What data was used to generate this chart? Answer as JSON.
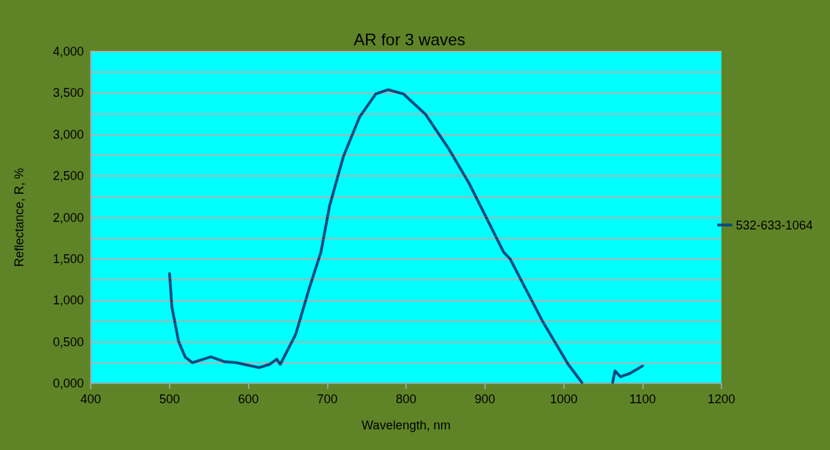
{
  "chart_data": {
    "type": "line",
    "title": "AR for 3 waves",
    "xlabel": "Wavelength, nm",
    "ylabel": "Reflectance, R, %",
    "x": [
      500,
      503,
      511.5,
      520,
      529,
      552.5,
      570,
      584,
      613.5,
      627,
      636,
      640.5,
      660,
      677,
      692,
      703,
      720.7,
      741,
      761.6,
      777,
      796.5,
      825,
      854,
      880,
      923.8,
      932,
      973,
      1005.6,
      1023,
      1040,
      1062,
      1065,
      1072,
      1084,
      1100
    ],
    "series": [
      {
        "name": "532-633-1064",
        "color": "#004a80",
        "values": [
          1.325,
          0.92,
          0.505,
          0.315,
          0.25,
          0.32,
          0.26,
          0.25,
          0.19,
          0.23,
          0.29,
          0.23,
          0.59,
          1.14,
          1.58,
          2.14,
          2.74,
          3.21,
          3.49,
          3.54,
          3.49,
          3.24,
          2.83,
          2.41,
          1.58,
          1.5,
          0.75,
          0.23,
          0.01,
          null,
          0.01,
          0.15,
          0.08,
          0.12,
          0.21
        ]
      }
    ],
    "xlim": [
      400,
      1200
    ],
    "xticks": [
      400,
      500,
      600,
      700,
      800,
      900,
      1000,
      1100,
      1200
    ],
    "ylim": [
      0,
      4
    ],
    "yticks": [
      {
        "value": 0,
        "label": "0,000"
      },
      {
        "value": 0.25,
        "label": null
      },
      {
        "value": 0.5,
        "label": "0,500"
      },
      {
        "value": 0.75,
        "label": null
      },
      {
        "value": 1,
        "label": "1,000"
      },
      {
        "value": 1.25,
        "label": null
      },
      {
        "value": 1.5,
        "label": "1,500"
      },
      {
        "value": 1.75,
        "label": null
      },
      {
        "value": 2,
        "label": "2,000"
      },
      {
        "value": 2.25,
        "label": null
      },
      {
        "value": 2.5,
        "label": "2,500"
      },
      {
        "value": 2.75,
        "label": null
      },
      {
        "value": 3,
        "label": "3,000"
      },
      {
        "value": 3.25,
        "label": null
      },
      {
        "value": 3.5,
        "label": "3,500"
      },
      {
        "value": 3.75,
        "label": null
      },
      {
        "value": 4,
        "label": "4,000"
      }
    ],
    "grid": "y",
    "legend": "right",
    "marker": "none",
    "line_style": "solid"
  }
}
